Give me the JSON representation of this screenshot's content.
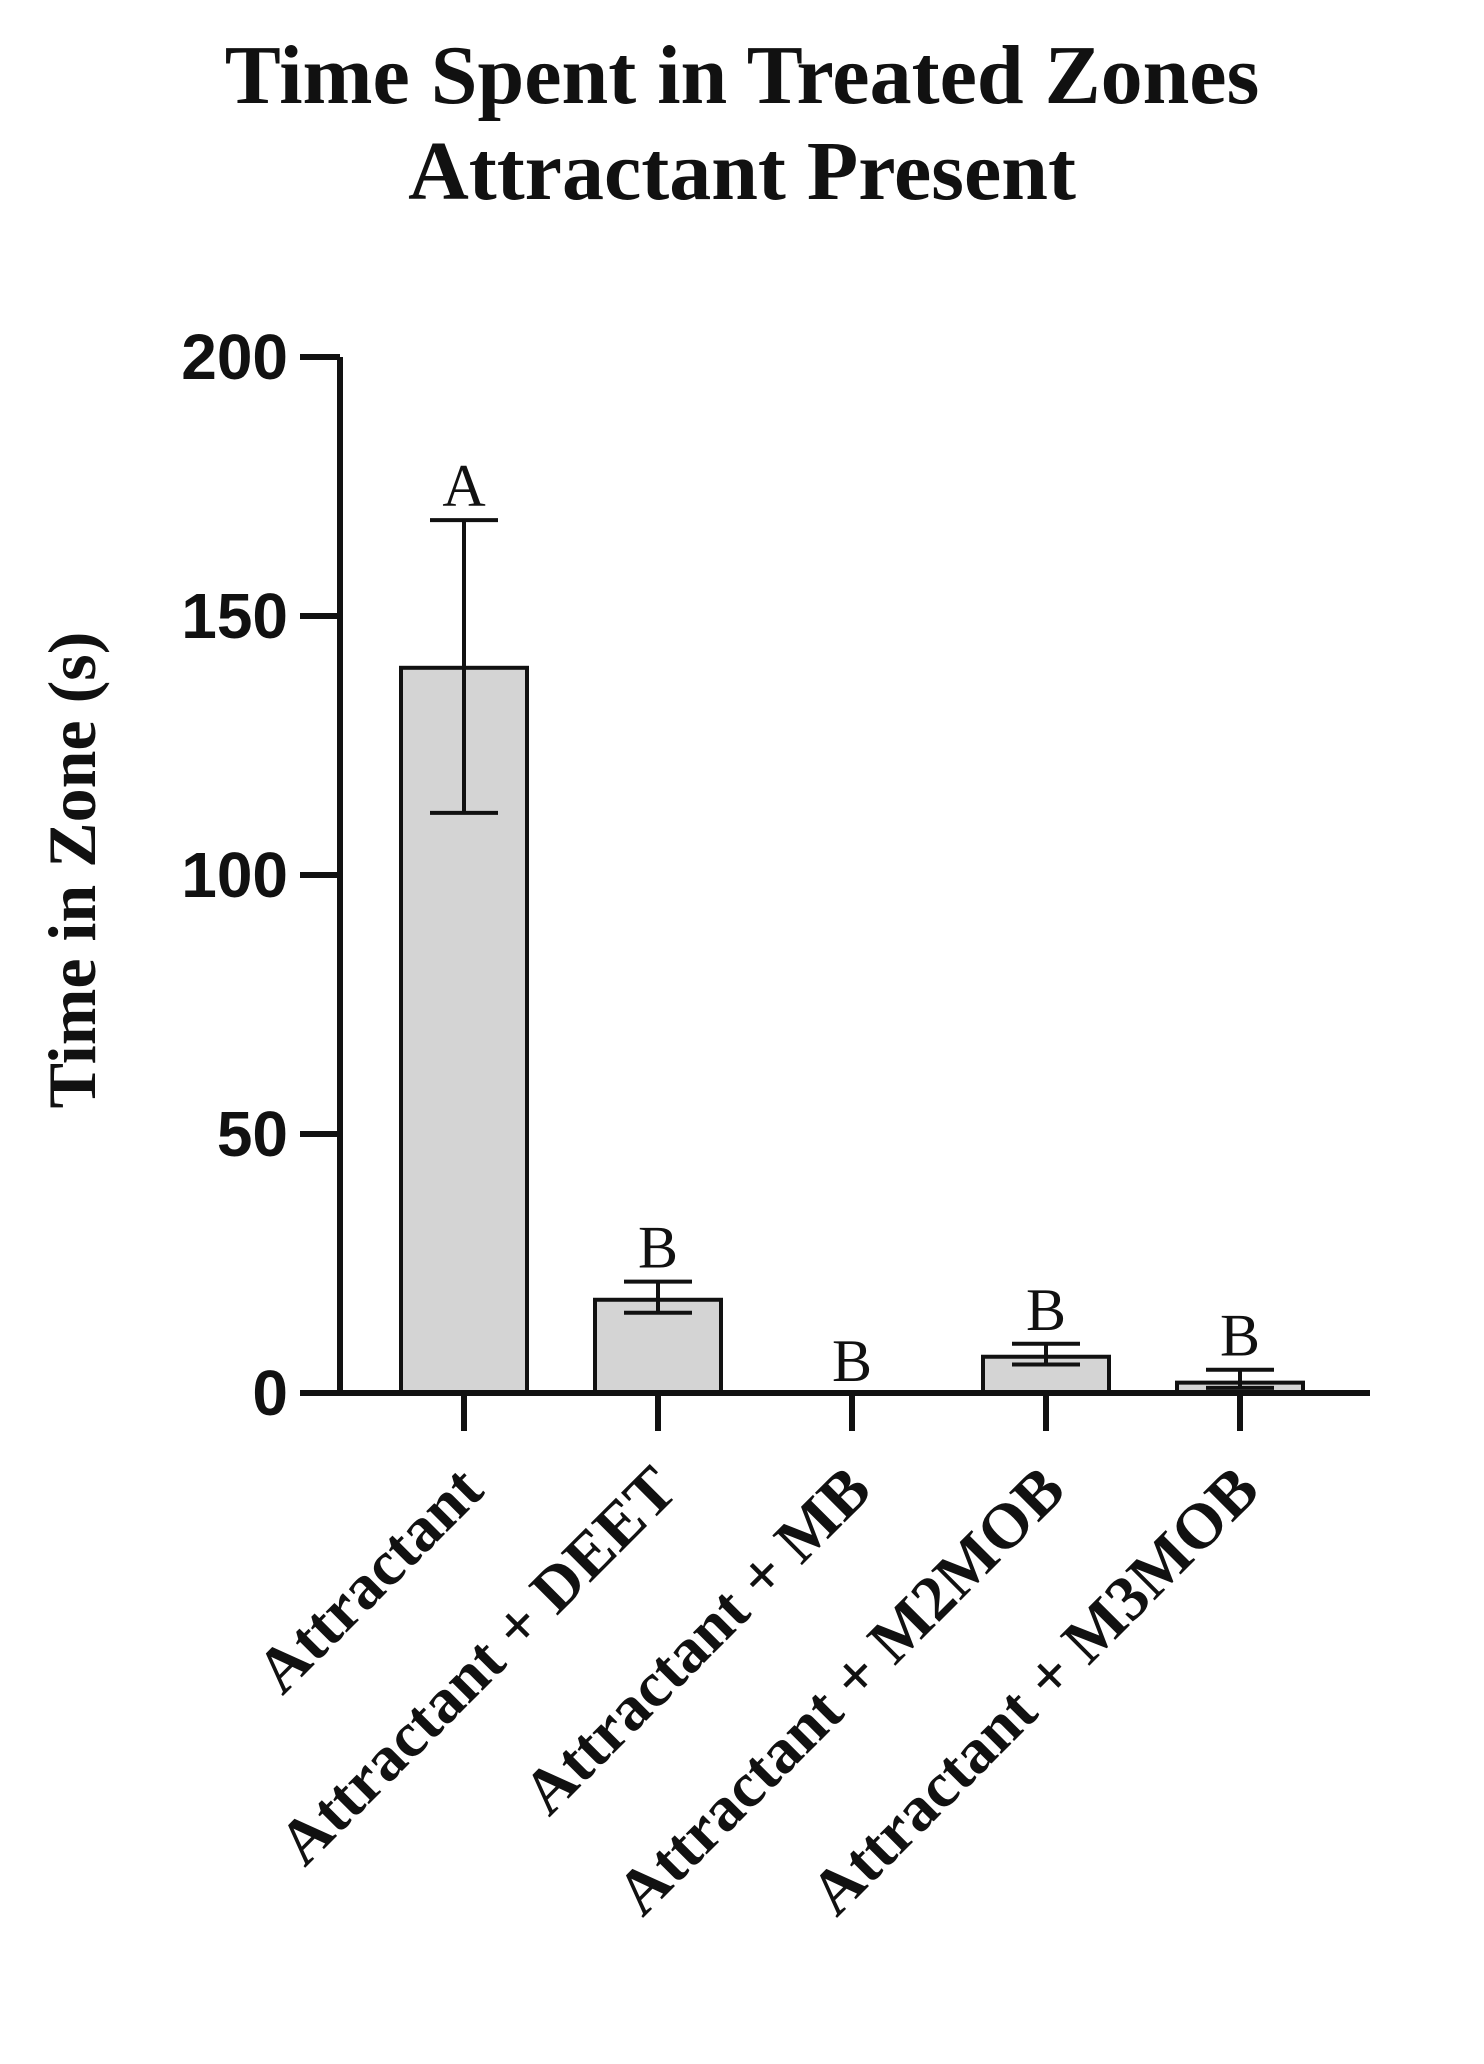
{
  "title_lines": [
    "Time Spent in Treated Zones",
    "Attractant Present"
  ],
  "chart_data": {
    "type": "bar",
    "title": "Time Spent in Treated Zones Attractant Present",
    "xlabel": "",
    "ylabel": "Time in Zone (s)",
    "ylim": [
      0,
      200
    ],
    "yticks": [
      0,
      50,
      100,
      150,
      200
    ],
    "ytick_labels": [
      "0",
      "50",
      "100",
      "150",
      "200"
    ],
    "categories": [
      "Attractant",
      "Attractant + DEET",
      "Attractant + MB",
      "Attractant + M2MOB",
      "Attractant + M3MOB"
    ],
    "values": [
      140,
      18,
      0,
      7,
      2
    ],
    "error_low": [
      112,
      15.5,
      0,
      5.5,
      1
    ],
    "error_high": [
      168.5,
      21.5,
      0,
      9.5,
      4.5
    ],
    "significance_letters": [
      "A",
      "B",
      "B",
      "B",
      "B"
    ],
    "grid": false,
    "legend": "none",
    "colors": {
      "bar_fill": "#d4d4d4",
      "bar_stroke": "#111111"
    }
  }
}
